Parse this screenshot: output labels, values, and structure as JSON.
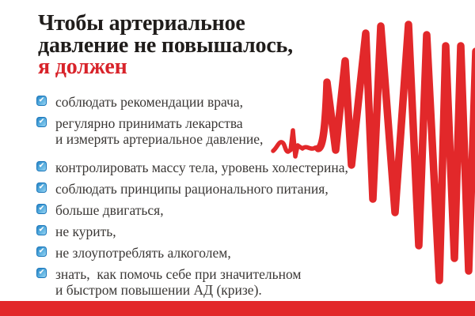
{
  "colors": {
    "red_accent": "#d8232a",
    "red_graphic": "#e2282a",
    "title_text": "#201d1b",
    "body_text": "#3b3836",
    "checkbox_border": "#1b76ba",
    "checkbox_top": "#2a86c6",
    "checkbox_bottom": "#9bd6f3"
  },
  "title": {
    "line1": "Чтобы артериальное",
    "line2": "давление не повышалось,",
    "line3_highlight": "я должен"
  },
  "icons": {
    "checkmark_glyph": "✔"
  },
  "checklist": {
    "items": [
      {
        "checked": true,
        "lines": [
          "соблюдать рекомендации врача,"
        ]
      },
      {
        "checked": true,
        "lines": [
          "регулярно принимать лекарства",
          "и измерять артериальное давление,"
        ]
      },
      {
        "checked": true,
        "lines": [
          "контролировать массу тела, уровень холестерина,"
        ]
      },
      {
        "checked": true,
        "lines": [
          "соблюдать принципы рационального питания,"
        ]
      },
      {
        "checked": true,
        "lines": [
          "больше двигаться,"
        ]
      },
      {
        "checked": true,
        "lines": [
          "не курить,"
        ]
      },
      {
        "checked": true,
        "lines": [
          "не злоупотреблять алкоголем,"
        ]
      },
      {
        "checked": true,
        "lines": [
          "знать,  как помочь себе при значительном",
          "и быстром повышении АД (кризе)."
        ]
      }
    ]
  },
  "decorations": {
    "ecg_scribble": "red hand-drawn heartbeat / ECG pulse scribble",
    "bottom_bar": "solid red footer bar"
  }
}
